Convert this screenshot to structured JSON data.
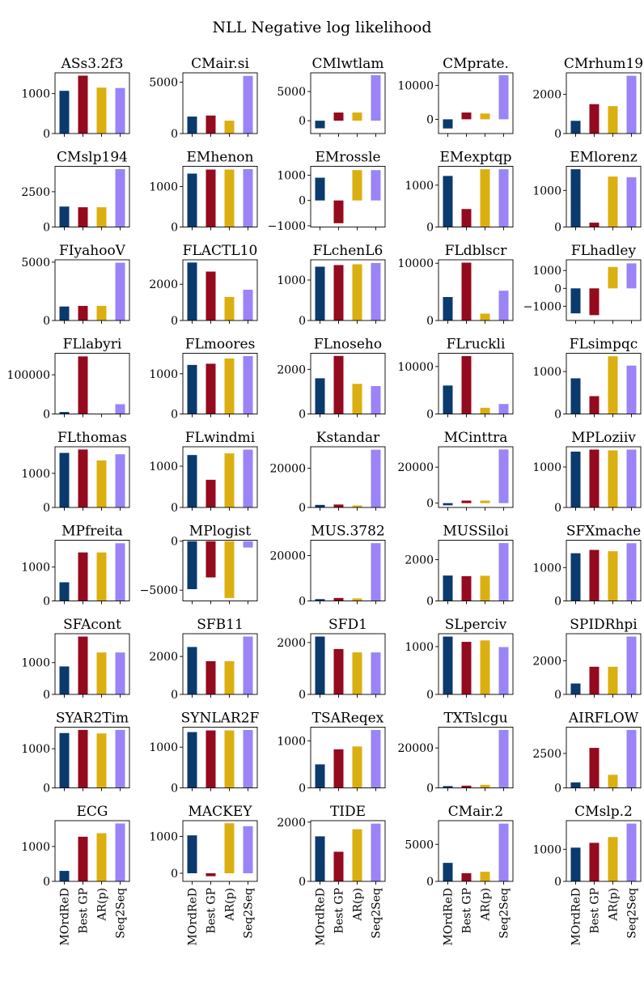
{
  "title": "NLL Negative log likelihood",
  "methods": [
    "MOrdReD",
    "Best GP",
    "AR(p)",
    "Seq2Seq"
  ],
  "colors": [
    "#0a3a6e",
    "#940a1e",
    "#dcaf10",
    "#9a84f8"
  ],
  "chart_data": {
    "type": "bar",
    "title": "NLL Negative log likelihood",
    "categories": [
      "MOrdReD",
      "Best GP",
      "AR(p)",
      "Seq2Seq"
    ],
    "panels": [
      {
        "name": "ASs3.2f3",
        "values": [
          1070,
          1450,
          1150,
          1140
        ],
        "ylim": [
          0,
          1520
        ],
        "yticks": [
          0,
          1000
        ]
      },
      {
        "name": "CMair.si",
        "values": [
          1650,
          1750,
          1250,
          5600
        ],
        "ylim": [
          0,
          5900
        ],
        "yticks": [
          0,
          5000
        ]
      },
      {
        "name": "CMlwtlam",
        "values": [
          -1300,
          1400,
          1400,
          7800
        ],
        "ylim": [
          -2200,
          8200
        ],
        "yticks": [
          0,
          5000
        ]
      },
      {
        "name": "CMprate.",
        "values": [
          -2700,
          2000,
          1700,
          13000
        ],
        "ylim": [
          -4200,
          13700
        ],
        "yticks": [
          0,
          10000
        ]
      },
      {
        "name": "CMrhum19",
        "values": [
          650,
          1500,
          1400,
          2950
        ],
        "ylim": [
          0,
          3100
        ],
        "yticks": [
          0,
          2000
        ]
      },
      {
        "name": "CMslp194",
        "values": [
          1450,
          1400,
          1400,
          4100
        ],
        "ylim": [
          0,
          4300
        ],
        "yticks": [
          0,
          2500
        ]
      },
      {
        "name": "EMhenon",
        "values": [
          1320,
          1420,
          1420,
          1430
        ],
        "ylim": [
          0,
          1500
        ],
        "yticks": [
          0,
          1000
        ]
      },
      {
        "name": "EMrossle",
        "values": [
          900,
          -900,
          1200,
          1200
        ],
        "ylim": [
          -1050,
          1350
        ],
        "yticks": [
          -1000,
          0,
          1000
        ]
      },
      {
        "name": "EMexptqp",
        "values": [
          1220,
          430,
          1380,
          1380
        ],
        "ylim": [
          0,
          1450
        ],
        "yticks": [
          0,
          1000
        ]
      },
      {
        "name": "EMlorenz",
        "values": [
          1580,
          120,
          1380,
          1360
        ],
        "ylim": [
          0,
          1660
        ],
        "yticks": [
          0,
          1000
        ]
      },
      {
        "name": "FIyahooV",
        "values": [
          1200,
          1250,
          1250,
          4950
        ],
        "ylim": [
          0,
          5200
        ],
        "yticks": [
          0,
          5000
        ]
      },
      {
        "name": "FLACTL10",
        "values": [
          3200,
          2700,
          1300,
          1700
        ],
        "ylim": [
          0,
          3350
        ],
        "yticks": [
          0,
          2000
        ]
      },
      {
        "name": "FLchenL6",
        "values": [
          1330,
          1370,
          1390,
          1420
        ],
        "ylim": [
          0,
          1500
        ],
        "yticks": [
          0,
          1000
        ]
      },
      {
        "name": "FLdblscr",
        "values": [
          4100,
          10100,
          1200,
          5200
        ],
        "ylim": [
          0,
          10600
        ],
        "yticks": [
          0,
          10000
        ]
      },
      {
        "name": "FLhadley",
        "values": [
          -1400,
          -1500,
          1200,
          1400
        ],
        "ylim": [
          -1800,
          1600
        ],
        "yticks": [
          -1000,
          0,
          1000
        ]
      },
      {
        "name": "FLlabyri",
        "values": [
          5000,
          147000,
          0,
          25000
        ],
        "ylim": [
          0,
          155000
        ],
        "yticks": [
          0,
          100000
        ]
      },
      {
        "name": "FLmoores",
        "values": [
          1220,
          1250,
          1380,
          1440
        ],
        "ylim": [
          0,
          1510
        ],
        "yticks": [
          0,
          1000
        ]
      },
      {
        "name": "FLnoseho",
        "values": [
          1600,
          2600,
          1350,
          1250
        ],
        "ylim": [
          0,
          2720
        ],
        "yticks": [
          0,
          2000
        ]
      },
      {
        "name": "FLruckli",
        "values": [
          6000,
          12200,
          1300,
          2100
        ],
        "ylim": [
          0,
          12800
        ],
        "yticks": [
          0,
          10000
        ]
      },
      {
        "name": "FLsimpqc",
        "values": [
          840,
          420,
          1360,
          1140
        ],
        "ylim": [
          0,
          1430
        ],
        "yticks": [
          0,
          1000
        ]
      },
      {
        "name": "FLthomas",
        "values": [
          1600,
          1700,
          1380,
          1560
        ],
        "ylim": [
          0,
          1780
        ],
        "yticks": [
          0,
          1000
        ]
      },
      {
        "name": "FLwindmi",
        "values": [
          1270,
          670,
          1310,
          1400
        ],
        "ylim": [
          0,
          1470
        ],
        "yticks": [
          0,
          1000
        ]
      },
      {
        "name": "Kstandar",
        "values": [
          1300,
          1500,
          1000,
          29500
        ],
        "ylim": [
          0,
          31000
        ],
        "yticks": [
          0,
          20000
        ]
      },
      {
        "name": "MCinttra",
        "values": [
          -1200,
          1400,
          1400,
          29800
        ],
        "ylim": [
          -2400,
          31300
        ],
        "yticks": [
          0,
          20000
        ]
      },
      {
        "name": "MPLoziiv",
        "values": [
          1380,
          1430,
          1410,
          1430
        ],
        "ylim": [
          0,
          1500
        ],
        "yticks": [
          0,
          1000
        ]
      },
      {
        "name": "MPfreita",
        "values": [
          550,
          1430,
          1430,
          1700
        ],
        "ylim": [
          0,
          1790
        ],
        "yticks": [
          0,
          1000
        ]
      },
      {
        "name": "MPlogist",
        "values": [
          -4900,
          -3700,
          -5800,
          -650
        ],
        "ylim": [
          -6100,
          100
        ],
        "yticks": [
          -5000,
          0
        ]
      },
      {
        "name": "MUS.3782",
        "values": [
          800,
          1300,
          1100,
          25500
        ],
        "ylim": [
          0,
          26800
        ],
        "yticks": [
          0,
          20000
        ]
      },
      {
        "name": "MUSSiloi",
        "values": [
          1230,
          1200,
          1220,
          2800
        ],
        "ylim": [
          0,
          2940
        ],
        "yticks": [
          0,
          2000
        ]
      },
      {
        "name": "SFXmache",
        "values": [
          1430,
          1530,
          1490,
          1730
        ],
        "ylim": [
          0,
          1820
        ],
        "yticks": [
          0,
          1000
        ]
      },
      {
        "name": "SFAcont",
        "values": [
          880,
          1820,
          1320,
          1320
        ],
        "ylim": [
          0,
          1910
        ],
        "yticks": [
          0,
          1000
        ]
      },
      {
        "name": "SFB11",
        "values": [
          2500,
          1750,
          1750,
          3050
        ],
        "ylim": [
          0,
          3200
        ],
        "yticks": [
          0,
          2000
        ]
      },
      {
        "name": "SFD1",
        "values": [
          2230,
          1750,
          1620,
          1620
        ],
        "ylim": [
          0,
          2340
        ],
        "yticks": [
          0,
          2000
        ]
      },
      {
        "name": "SLperciv",
        "values": [
          1210,
          1100,
          1130,
          990
        ],
        "ylim": [
          0,
          1270
        ],
        "yticks": [
          0,
          1000
        ]
      },
      {
        "name": "SPIDRhpi",
        "values": [
          650,
          1650,
          1650,
          3450
        ],
        "ylim": [
          0,
          3620
        ],
        "yticks": [
          0,
          2000
        ]
      },
      {
        "name": "SYAR2Tim",
        "values": [
          1400,
          1480,
          1390,
          1480
        ],
        "ylim": [
          0,
          1550
        ],
        "yticks": [
          0,
          1000
        ]
      },
      {
        "name": "SYNLAR2F",
        "values": [
          1370,
          1410,
          1410,
          1420
        ],
        "ylim": [
          0,
          1490
        ],
        "yticks": [
          0,
          1000
        ]
      },
      {
        "name": "TSAReqex",
        "values": [
          500,
          820,
          880,
          1230
        ],
        "ylim": [
          0,
          1290
        ],
        "yticks": [
          0,
          1000
        ]
      },
      {
        "name": "TXTslcgu",
        "values": [
          900,
          1100,
          1500,
          29000
        ],
        "ylim": [
          0,
          30400
        ],
        "yticks": [
          0,
          20000
        ]
      },
      {
        "name": "AIRFLOW",
        "values": [
          400,
          2900,
          950,
          4200
        ],
        "ylim": [
          0,
          4400
        ],
        "yticks": [
          0,
          2500
        ]
      },
      {
        "name": "ECG",
        "values": [
          300,
          1280,
          1380,
          1660
        ],
        "ylim": [
          0,
          1740
        ],
        "yticks": [
          0,
          1000
        ]
      },
      {
        "name": "MACKEY",
        "values": [
          1030,
          -80,
          1360,
          1280
        ],
        "ylim": [
          -220,
          1430
        ],
        "yticks": [
          0,
          1000
        ]
      },
      {
        "name": "TIDE",
        "values": [
          1520,
          1000,
          1760,
          1950
        ],
        "ylim": [
          0,
          2050
        ],
        "yticks": [
          0,
          2000
        ]
      },
      {
        "name": "CMair.2",
        "values": [
          2500,
          1100,
          1300,
          7800
        ],
        "ylim": [
          0,
          8200
        ],
        "yticks": [
          0,
          5000
        ]
      },
      {
        "name": "CMslp.2",
        "values": [
          1050,
          1200,
          1380,
          1800
        ],
        "ylim": [
          0,
          1890
        ],
        "yticks": [
          0,
          1000
        ]
      }
    ]
  }
}
